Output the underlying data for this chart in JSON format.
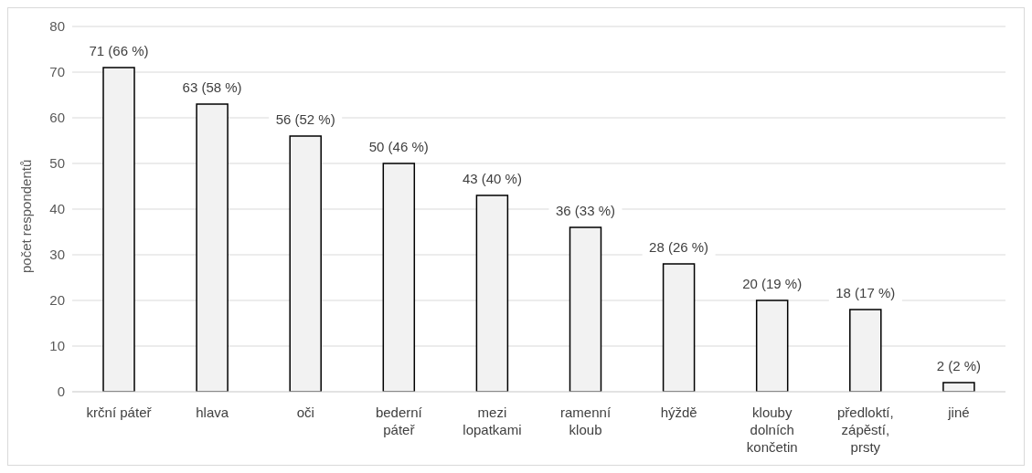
{
  "chart_data": {
    "type": "bar",
    "ylabel": "počet respondentů",
    "categories": [
      "krční páteř",
      "hlava",
      "oči",
      "bederní páteř",
      "mezi lopatkami",
      "ramenní kloub",
      "hýždě",
      "klouby dolních končetin",
      "předloktí, zápěstí, prsty",
      "jiné"
    ],
    "values": [
      71,
      63,
      56,
      50,
      43,
      36,
      28,
      20,
      18,
      2
    ],
    "value_labels": [
      "71 (66 %)",
      "63 (58 %)",
      "56 (52 %)",
      "50 (46 %)",
      "43 (40 %)",
      "36 (33 %)",
      "28 (26 %)",
      "20 (19 %)",
      "18 (17 %)",
      "2 (2 %)"
    ],
    "color": "#f2f2f2",
    "ylim": [
      0,
      80
    ],
    "yticks": [
      0,
      10,
      20,
      30,
      40,
      50,
      60,
      70,
      80
    ],
    "grid": "y",
    "legend": false
  }
}
